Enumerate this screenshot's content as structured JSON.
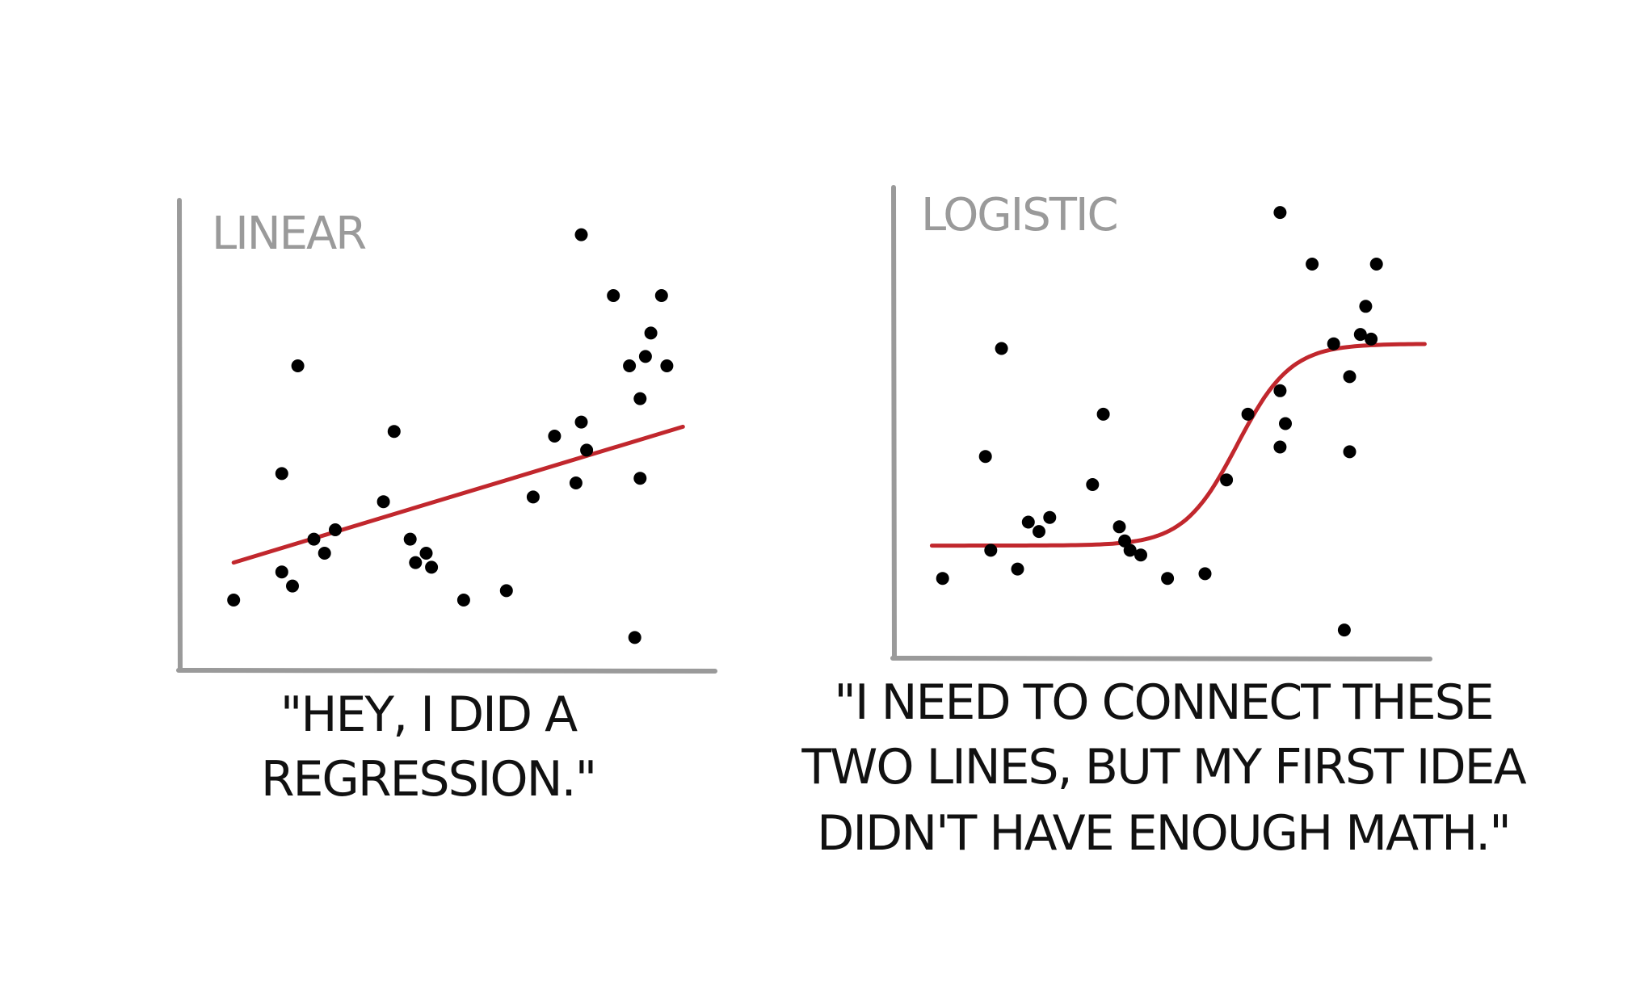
{
  "chart_data": [
    {
      "type": "scatter",
      "title": "LINEAR",
      "caption_lines": [
        "\"HEY, I DID A",
        "REGRESSION.\""
      ],
      "xlim": [
        0,
        100
      ],
      "ylim": [
        0,
        100
      ],
      "fit": {
        "kind": "linear",
        "x_start": 10,
        "x_end": 94,
        "y_start": 23,
        "y_end": 52
      },
      "points": [
        [
          10,
          15
        ],
        [
          19,
          21
        ],
        [
          19,
          42
        ],
        [
          21,
          18
        ],
        [
          22,
          65
        ],
        [
          25,
          28
        ],
        [
          27,
          25
        ],
        [
          29,
          30
        ],
        [
          38,
          36
        ],
        [
          40,
          51
        ],
        [
          43,
          28
        ],
        [
          44,
          23
        ],
        [
          46,
          25
        ],
        [
          47,
          22
        ],
        [
          53,
          15
        ],
        [
          61,
          17
        ],
        [
          66,
          37
        ],
        [
          70,
          50
        ],
        [
          74,
          40
        ],
        [
          75,
          53
        ],
        [
          76,
          47
        ],
        [
          75,
          93
        ],
        [
          81,
          80
        ],
        [
          84,
          65
        ],
        [
          85,
          7
        ],
        [
          86,
          58
        ],
        [
          86,
          41
        ],
        [
          87,
          67
        ],
        [
          88,
          72
        ],
        [
          90,
          80
        ],
        [
          91,
          65
        ]
      ],
      "colors": {
        "axis": "#9a9a9a",
        "points": "#000000",
        "fit": "#c1272d"
      }
    },
    {
      "type": "scatter",
      "title": "LOGISTIC",
      "caption_lines": [
        "\"I NEED TO CONNECT THESE",
        "TWO LINES, BUT MY FIRST IDEA",
        "DIDN'T HAVE ENOUGH MATH.\""
      ],
      "xlim": [
        0,
        100
      ],
      "ylim": [
        0,
        100
      ],
      "fit": {
        "kind": "logistic",
        "x_start": 7,
        "x_end": 99,
        "y_low": 24,
        "y_high": 67,
        "midpoint": 64,
        "steepness": 0.2
      },
      "points": [
        [
          9,
          17
        ],
        [
          17,
          43
        ],
        [
          18,
          23
        ],
        [
          20,
          66
        ],
        [
          23,
          19
        ],
        [
          25,
          29
        ],
        [
          27,
          27
        ],
        [
          29,
          30
        ],
        [
          37,
          37
        ],
        [
          39,
          52
        ],
        [
          42,
          28
        ],
        [
          43,
          25
        ],
        [
          44,
          23
        ],
        [
          46,
          22
        ],
        [
          51,
          17
        ],
        [
          58,
          18
        ],
        [
          62,
          38
        ],
        [
          66,
          52
        ],
        [
          72,
          95
        ],
        [
          72,
          57
        ],
        [
          72,
          45
        ],
        [
          73,
          50
        ],
        [
          78,
          84
        ],
        [
          82,
          67
        ],
        [
          84,
          6
        ],
        [
          85,
          60
        ],
        [
          85,
          44
        ],
        [
          87,
          69
        ],
        [
          88,
          75
        ],
        [
          89,
          68
        ],
        [
          90,
          84
        ]
      ],
      "colors": {
        "axis": "#9a9a9a",
        "points": "#000000",
        "fit": "#c1272d"
      }
    }
  ]
}
